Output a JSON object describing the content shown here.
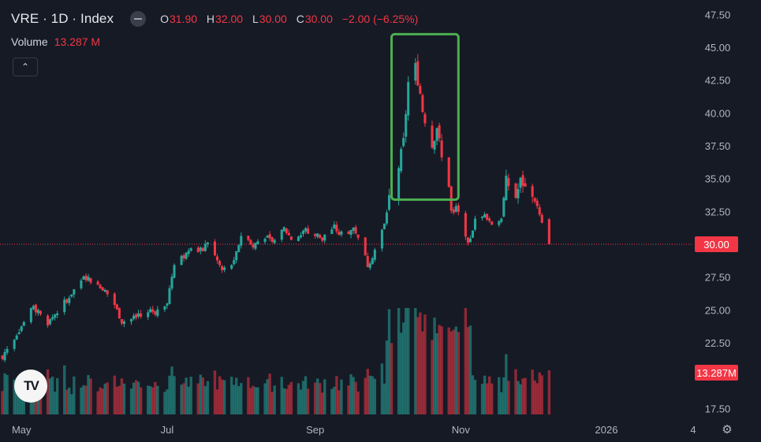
{
  "header": {
    "symbol": "VRE · 1D · Index",
    "open_label": "O",
    "open": "31.90",
    "high_label": "H",
    "high": "32.00",
    "low_label": "L",
    "low": "30.00",
    "close_label": "C",
    "close": "30.00",
    "change": "−2.00 (−6.25%)"
  },
  "volume": {
    "label": "Volume",
    "value": "13.287 M"
  },
  "colors": {
    "up": "#26a69a",
    "down": "#f23645",
    "bg": "#161a25",
    "highlight": "#4caf50",
    "price_tag": "#f23645"
  },
  "axis_extras": {
    "scale_toggle": "4"
  },
  "chart_data": {
    "type": "candlestick",
    "title": "VRE · 1D · Index",
    "y_ticks": [
      17.5,
      22.5,
      25.0,
      27.5,
      30.0,
      32.5,
      35.0,
      37.5,
      40.0,
      42.5,
      45.0,
      47.5
    ],
    "y_tick_labels": [
      "17.50",
      "22.50",
      "25.00",
      "27.50",
      "30.00",
      "32.50",
      "35.00",
      "37.50",
      "40.00",
      "42.50",
      "45.00",
      "47.50"
    ],
    "ylim": [
      16.8,
      48.6
    ],
    "x_labels": [
      {
        "text": "May",
        "date": "2025-05-01"
      },
      {
        "text": "Jul",
        "date": "2025-07-01"
      },
      {
        "text": "Sep",
        "date": "2025-09-01"
      },
      {
        "text": "Nov",
        "date": "2025-11-01"
      },
      {
        "text": "2026",
        "date": "2026-01-01"
      }
    ],
    "xlim": [
      "2025-04-22",
      "2026-02-06"
    ],
    "last_price": {
      "value": 30.0,
      "label": "30.00"
    },
    "last_volume": {
      "value": 13.287,
      "label": "13.287 M"
    },
    "highlight_box": {
      "from": "2025-10-03",
      "to": "2025-10-31",
      "y_low": 33.4,
      "y_high": 46.0
    },
    "pivots": [
      [
        "2025-04-23",
        21.5
      ],
      [
        "2025-05-06",
        25.2
      ],
      [
        "2025-05-12",
        24.0
      ],
      [
        "2025-05-20",
        25.8
      ],
      [
        "2025-05-27",
        27.5
      ],
      [
        "2025-06-03",
        27.0
      ],
      [
        "2025-06-09",
        25.4
      ],
      [
        "2025-06-12",
        24.1
      ],
      [
        "2025-06-20",
        24.5
      ],
      [
        "2025-06-26",
        25.0
      ],
      [
        "2025-07-01",
        25.6
      ],
      [
        "2025-07-04",
        28.6
      ],
      [
        "2025-07-11",
        29.9
      ],
      [
        "2025-07-15",
        29.4
      ],
      [
        "2025-07-18",
        30.2
      ],
      [
        "2025-07-24",
        28.0
      ],
      [
        "2025-07-29",
        28.6
      ],
      [
        "2025-08-01",
        30.7
      ],
      [
        "2025-08-06",
        30.0
      ],
      [
        "2025-08-11",
        30.6
      ],
      [
        "2025-08-15",
        30.0
      ],
      [
        "2025-08-19",
        31.2
      ],
      [
        "2025-08-22",
        30.4
      ],
      [
        "2025-08-28",
        30.9
      ],
      [
        "2025-09-03",
        30.5
      ],
      [
        "2025-09-09",
        31.3
      ],
      [
        "2025-09-12",
        30.6
      ],
      [
        "2025-09-17",
        31.2
      ],
      [
        "2025-09-19",
        30.7
      ],
      [
        "2025-09-23",
        28.4
      ],
      [
        "2025-09-25",
        29.1
      ],
      [
        "2025-09-30",
        31.5
      ],
      [
        "2025-10-02",
        33.5
      ],
      [
        "2025-10-06",
        35.9
      ],
      [
        "2025-10-08",
        37.8
      ],
      [
        "2025-10-10",
        42.3
      ],
      [
        "2025-10-13",
        43.5
      ],
      [
        "2025-10-15",
        41.5
      ],
      [
        "2025-10-16",
        40.2
      ],
      [
        "2025-10-20",
        37.5
      ],
      [
        "2025-10-22",
        39.0
      ],
      [
        "2025-10-24",
        36.5
      ],
      [
        "2025-10-27",
        34.6
      ],
      [
        "2025-10-28",
        32.5
      ],
      [
        "2025-10-30",
        32.8
      ],
      [
        "2025-11-03",
        30.8
      ],
      [
        "2025-11-04",
        29.9
      ],
      [
        "2025-11-07",
        31.8
      ],
      [
        "2025-11-11",
        32.2
      ],
      [
        "2025-11-14",
        31.6
      ],
      [
        "2025-11-18",
        32.0
      ],
      [
        "2025-11-20",
        34.8
      ],
      [
        "2025-11-24",
        33.6
      ],
      [
        "2025-11-26",
        34.8
      ],
      [
        "2025-11-28",
        34.5
      ],
      [
        "2025-12-02",
        33.5
      ],
      [
        "2025-12-05",
        31.5
      ],
      [
        "2025-12-08",
        30.0
      ]
    ]
  }
}
